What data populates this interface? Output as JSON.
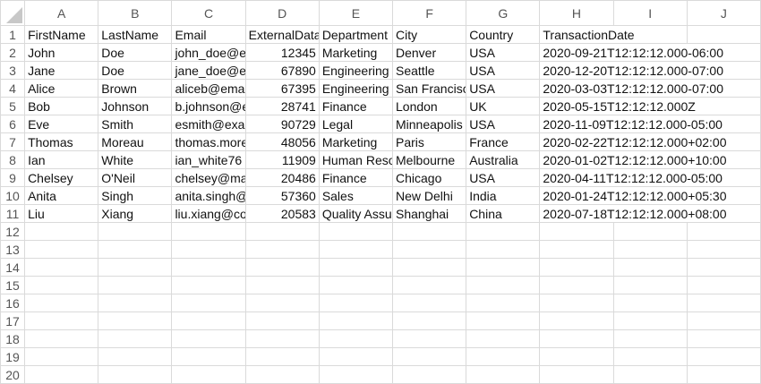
{
  "columns": [
    "A",
    "B",
    "C",
    "D",
    "E",
    "F",
    "G",
    "H",
    "I",
    "J"
  ],
  "rows": [
    [
      "FirstName",
      "LastName",
      "Email",
      "ExternalData",
      "Department",
      "City",
      "Country",
      "TransactionDate"
    ],
    [
      "John",
      "Doe",
      "john_doe@e",
      "12345",
      "Marketing",
      "Denver",
      "USA",
      "2020-09-21T12:12:12.000-06:00"
    ],
    [
      "Jane",
      "Doe",
      "jane_doe@e",
      "67890",
      "Engineering",
      "Seattle",
      "USA",
      "2020-12-20T12:12:12.000-07:00"
    ],
    [
      "Alice",
      "Brown",
      "aliceb@ema",
      "67395",
      "Engineering",
      "San Francisco",
      "USA",
      "2020-03-03T12:12:12.000-07:00"
    ],
    [
      "Bob",
      "Johnson",
      "b.johnson@e",
      "28741",
      "Finance",
      "London",
      "UK",
      "2020-05-15T12:12:12.000Z"
    ],
    [
      "Eve",
      "Smith",
      "esmith@exa",
      "90729",
      "Legal",
      "Minneapolis",
      "USA",
      "2020-11-09T12:12:12.000-05:00"
    ],
    [
      "Thomas",
      "Moreau",
      "thomas.more",
      "48056",
      "Marketing",
      "Paris",
      "France",
      "2020-02-22T12:12:12.000+02:00"
    ],
    [
      "Ian",
      "White",
      "ian_white76",
      "11909",
      "Human Reso",
      "Melbourne",
      "Australia",
      "2020-01-02T12:12:12.000+10:00"
    ],
    [
      "Chelsey",
      "O'Neil",
      "chelsey@ma",
      "20486",
      "Finance",
      "Chicago",
      "USA",
      "2020-04-11T12:12:12.000-05:00"
    ],
    [
      "Anita",
      "Singh",
      "anita.singh@",
      "57360",
      "Sales",
      "New Delhi",
      "India",
      "2020-01-24T12:12:12.000+05:30"
    ],
    [
      "Liu",
      "Xiang",
      "liu.xiang@co",
      "20583",
      "Quality Assu",
      "Shanghai",
      "China",
      "2020-07-18T12:12:12.000+08:00"
    ]
  ],
  "row_numbers": [
    "1",
    "2",
    "3",
    "4",
    "5",
    "6",
    "7",
    "8",
    "9",
    "10",
    "11",
    "12",
    "13",
    "14",
    "15",
    "16",
    "17",
    "18",
    "19",
    "20"
  ]
}
